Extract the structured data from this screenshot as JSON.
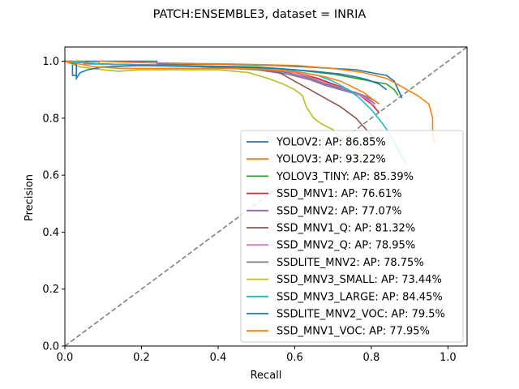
{
  "chart_data": {
    "type": "line",
    "title": "PATCH:ENSEMBLE3, dataset = INRIA",
    "xlabel": "Recall",
    "ylabel": "Precision",
    "xlim": [
      0.0,
      1.05
    ],
    "ylim": [
      0.0,
      1.05
    ],
    "xticks": [
      "0.0",
      "0.2",
      "0.4",
      "0.6",
      "0.8",
      "1.0"
    ],
    "yticks": [
      "0.0",
      "0.2",
      "0.4",
      "0.6",
      "0.8",
      "1.0"
    ],
    "grid": false,
    "legend_position": "lower-right",
    "reference_line": {
      "style": "dashed",
      "color": "#808080",
      "points": [
        [
          0,
          0
        ],
        [
          1.05,
          1.05
        ]
      ]
    },
    "series": [
      {
        "name": "YOLOV2: AP: 86.85%",
        "color": "#1f77b4",
        "points": [
          [
            0,
            1.0
          ],
          [
            0.02,
            1.0
          ],
          [
            0.02,
            0.95
          ],
          [
            0.03,
            0.95
          ],
          [
            0.03,
            1.0
          ],
          [
            0.1,
            1.0
          ],
          [
            0.24,
            1.0
          ],
          [
            0.24,
            0.99
          ],
          [
            0.4,
            0.99
          ],
          [
            0.55,
            0.985
          ],
          [
            0.63,
            0.98
          ],
          [
            0.7,
            0.975
          ],
          [
            0.76,
            0.97
          ],
          [
            0.8,
            0.96
          ],
          [
            0.84,
            0.95
          ],
          [
            0.86,
            0.93
          ],
          [
            0.87,
            0.9
          ],
          [
            0.88,
            0.87
          ]
        ]
      },
      {
        "name": "YOLOV3: AP: 93.22%",
        "color": "#ff7f0e",
        "points": [
          [
            0,
            1.0
          ],
          [
            0.05,
            1.0
          ],
          [
            0.05,
            0.99
          ],
          [
            0.09,
            0.99
          ],
          [
            0.09,
            1.0
          ],
          [
            0.2,
            0.995
          ],
          [
            0.45,
            0.99
          ],
          [
            0.6,
            0.985
          ],
          [
            0.7,
            0.975
          ],
          [
            0.78,
            0.96
          ],
          [
            0.84,
            0.94
          ],
          [
            0.88,
            0.91
          ],
          [
            0.92,
            0.88
          ],
          [
            0.95,
            0.85
          ],
          [
            0.96,
            0.8
          ],
          [
            0.96,
            0.74
          ],
          [
            0.965,
            0.71
          ]
        ]
      },
      {
        "name": "YOLOV3_TINY: AP: 85.39%",
        "color": "#2ca02c",
        "points": [
          [
            0,
            1.0
          ],
          [
            0.1,
            0.99
          ],
          [
            0.3,
            0.985
          ],
          [
            0.5,
            0.98
          ],
          [
            0.6,
            0.97
          ],
          [
            0.7,
            0.955
          ],
          [
            0.76,
            0.94
          ],
          [
            0.8,
            0.93
          ],
          [
            0.84,
            0.92
          ],
          [
            0.86,
            0.9
          ],
          [
            0.87,
            0.88
          ]
        ]
      },
      {
        "name": "SSD_MNV1: AP: 76.61%",
        "color": "#d62728",
        "points": [
          [
            0,
            1.0
          ],
          [
            0.1,
            0.99
          ],
          [
            0.3,
            0.985
          ],
          [
            0.5,
            0.975
          ],
          [
            0.6,
            0.96
          ],
          [
            0.66,
            0.94
          ],
          [
            0.7,
            0.92
          ],
          [
            0.74,
            0.9
          ],
          [
            0.77,
            0.88
          ],
          [
            0.8,
            0.85
          ],
          [
            0.82,
            0.82
          ]
        ]
      },
      {
        "name": "SSD_MNV2: AP: 77.07%",
        "color": "#9467bd",
        "points": [
          [
            0,
            1.0
          ],
          [
            0.1,
            0.99
          ],
          [
            0.3,
            0.985
          ],
          [
            0.5,
            0.97
          ],
          [
            0.58,
            0.955
          ],
          [
            0.64,
            0.935
          ],
          [
            0.68,
            0.915
          ],
          [
            0.72,
            0.9
          ],
          [
            0.76,
            0.885
          ],
          [
            0.79,
            0.87
          ],
          [
            0.81,
            0.85
          ]
        ]
      },
      {
        "name": "SSD_MNV1_Q: AP: 81.32%",
        "color": "#8c564b",
        "points": [
          [
            0,
            1.0
          ],
          [
            0.1,
            0.99
          ],
          [
            0.3,
            0.985
          ],
          [
            0.5,
            0.975
          ],
          [
            0.56,
            0.96
          ],
          [
            0.6,
            0.93
          ],
          [
            0.64,
            0.9
          ],
          [
            0.68,
            0.87
          ],
          [
            0.72,
            0.84
          ],
          [
            0.76,
            0.8
          ],
          [
            0.78,
            0.77
          ],
          [
            0.8,
            0.74
          ],
          [
            0.81,
            0.72
          ]
        ]
      },
      {
        "name": "SSD_MNV2_Q: AP: 78.95%",
        "color": "#e377c2",
        "points": [
          [
            0,
            1.0
          ],
          [
            0.1,
            0.99
          ],
          [
            0.3,
            0.985
          ],
          [
            0.5,
            0.975
          ],
          [
            0.6,
            0.96
          ],
          [
            0.66,
            0.935
          ],
          [
            0.7,
            0.915
          ],
          [
            0.74,
            0.9
          ],
          [
            0.77,
            0.88
          ],
          [
            0.79,
            0.865
          ],
          [
            0.81,
            0.84
          ]
        ]
      },
      {
        "name": "SSDLITE_MNV2: AP: 78.75%",
        "color": "#7f7f7f",
        "points": [
          [
            0,
            1.0
          ],
          [
            0.1,
            0.99
          ],
          [
            0.3,
            0.985
          ],
          [
            0.5,
            0.97
          ],
          [
            0.58,
            0.96
          ],
          [
            0.64,
            0.94
          ],
          [
            0.68,
            0.92
          ],
          [
            0.72,
            0.905
          ],
          [
            0.76,
            0.89
          ],
          [
            0.79,
            0.875
          ],
          [
            0.81,
            0.86
          ],
          [
            0.82,
            0.85
          ]
        ]
      },
      {
        "name": "SSD_MNV3_SMALL: AP: 73.44%",
        "color": "#bcbd22",
        "points": [
          [
            0,
            1.0
          ],
          [
            0.04,
            0.98
          ],
          [
            0.1,
            0.97
          ],
          [
            0.14,
            0.965
          ],
          [
            0.2,
            0.97
          ],
          [
            0.3,
            0.97
          ],
          [
            0.4,
            0.97
          ],
          [
            0.48,
            0.96
          ],
          [
            0.53,
            0.94
          ],
          [
            0.57,
            0.92
          ],
          [
            0.6,
            0.9
          ],
          [
            0.62,
            0.88
          ],
          [
            0.63,
            0.84
          ],
          [
            0.65,
            0.8
          ],
          [
            0.67,
            0.78
          ],
          [
            0.7,
            0.76
          ],
          [
            0.72,
            0.73
          ],
          [
            0.74,
            0.71
          ],
          [
            0.76,
            0.68
          ],
          [
            0.78,
            0.65
          ]
        ]
      },
      {
        "name": "SSD_MNV3_LARGE: AP: 84.45%",
        "color": "#17becf",
        "points": [
          [
            0,
            1.0
          ],
          [
            0.1,
            0.99
          ],
          [
            0.3,
            0.985
          ],
          [
            0.5,
            0.975
          ],
          [
            0.6,
            0.965
          ],
          [
            0.66,
            0.95
          ],
          [
            0.7,
            0.93
          ],
          [
            0.74,
            0.9
          ],
          [
            0.77,
            0.87
          ],
          [
            0.8,
            0.83
          ],
          [
            0.83,
            0.78
          ],
          [
            0.85,
            0.74
          ],
          [
            0.87,
            0.69
          ],
          [
            0.89,
            0.64
          ]
        ]
      },
      {
        "name": "SSDLITE_MNV2_VOC: AP: 79.5%",
        "color": "#1f77b4",
        "points": [
          [
            0,
            1.0
          ],
          [
            0.03,
            0.99
          ],
          [
            0.03,
            0.94
          ],
          [
            0.04,
            0.96
          ],
          [
            0.06,
            0.97
          ],
          [
            0.1,
            0.98
          ],
          [
            0.2,
            0.985
          ],
          [
            0.4,
            0.98
          ],
          [
            0.55,
            0.975
          ],
          [
            0.65,
            0.965
          ],
          [
            0.72,
            0.955
          ],
          [
            0.76,
            0.945
          ],
          [
            0.79,
            0.935
          ],
          [
            0.82,
            0.92
          ],
          [
            0.84,
            0.9
          ]
        ]
      },
      {
        "name": "SSD_MNV1_VOC: AP: 77.95%",
        "color": "#ff7f0e",
        "points": [
          [
            0,
            1.0
          ],
          [
            0.04,
            0.99
          ],
          [
            0.08,
            0.98
          ],
          [
            0.15,
            0.975
          ],
          [
            0.3,
            0.975
          ],
          [
            0.45,
            0.975
          ],
          [
            0.55,
            0.97
          ],
          [
            0.62,
            0.96
          ],
          [
            0.68,
            0.945
          ],
          [
            0.72,
            0.93
          ],
          [
            0.75,
            0.91
          ],
          [
            0.78,
            0.89
          ],
          [
            0.8,
            0.87
          ],
          [
            0.82,
            0.85
          ]
        ]
      }
    ]
  }
}
